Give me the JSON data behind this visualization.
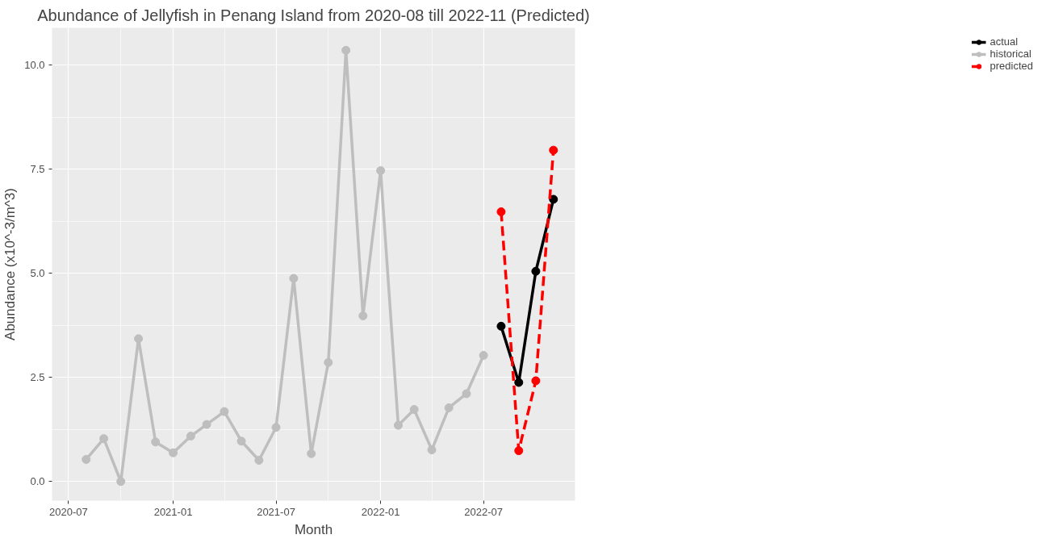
{
  "chart_data": {
    "type": "line",
    "title": "Abundance of Jellyfish in Penang Island from 2020-08 till 2022-11 (Predicted)",
    "xlabel": "Month",
    "ylabel": "Abundance (x10^-3/m^3)",
    "xlim": [
      "2020-06-02",
      "2022-12-09"
    ],
    "ylim": [
      -0.46,
      10.9
    ],
    "xticks": [
      {
        "value": "2020-07",
        "label": "2020-07"
      },
      {
        "value": "2021-01",
        "label": "2021-01"
      },
      {
        "value": "2021-07",
        "label": "2021-07"
      },
      {
        "value": "2022-01",
        "label": "2022-01"
      },
      {
        "value": "2022-07",
        "label": "2022-07"
      }
    ],
    "yticks": [
      {
        "value": 0,
        "label": "0.0"
      },
      2.5,
      {
        "value": 5,
        "label": "5.0"
      },
      7.5,
      {
        "value": 10,
        "label": "10.0"
      }
    ],
    "grid": true,
    "legend": "right",
    "marker": "circle",
    "series": [
      {
        "name": "actual",
        "color": "#000000",
        "line_style": "solid",
        "x": [
          "2022-08",
          "2022-09",
          "2022-10",
          "2022-11"
        ],
        "values": [
          3.73,
          2.38,
          5.05,
          6.78
        ]
      },
      {
        "name": "historical",
        "color": "#bebebe",
        "line_style": "solid",
        "x": [
          "2020-08",
          "2020-09",
          "2020-10",
          "2020-11",
          "2020-12",
          "2021-01",
          "2021-02",
          "2021-03",
          "2021-04",
          "2021-05",
          "2021-06",
          "2021-07",
          "2021-08",
          "2021-09",
          "2021-10",
          "2021-11",
          "2021-12",
          "2022-01",
          "2022-02",
          "2022-03",
          "2022-04",
          "2022-05",
          "2022-06",
          "2022-07"
        ],
        "values": [
          0.53,
          1.03,
          0.0,
          3.43,
          0.95,
          0.69,
          1.09,
          1.37,
          1.68,
          0.97,
          0.51,
          1.3,
          4.88,
          0.67,
          2.86,
          10.36,
          3.98,
          7.47,
          1.35,
          1.73,
          0.76,
          1.77,
          2.11,
          3.03
        ]
      },
      {
        "name": "predicted",
        "color": "#ff0000",
        "line_style": "dashed",
        "x": [
          "2022-08",
          "2022-09",
          "2022-10",
          "2022-11"
        ],
        "values": [
          6.48,
          0.74,
          2.42,
          7.96
        ]
      }
    ]
  }
}
